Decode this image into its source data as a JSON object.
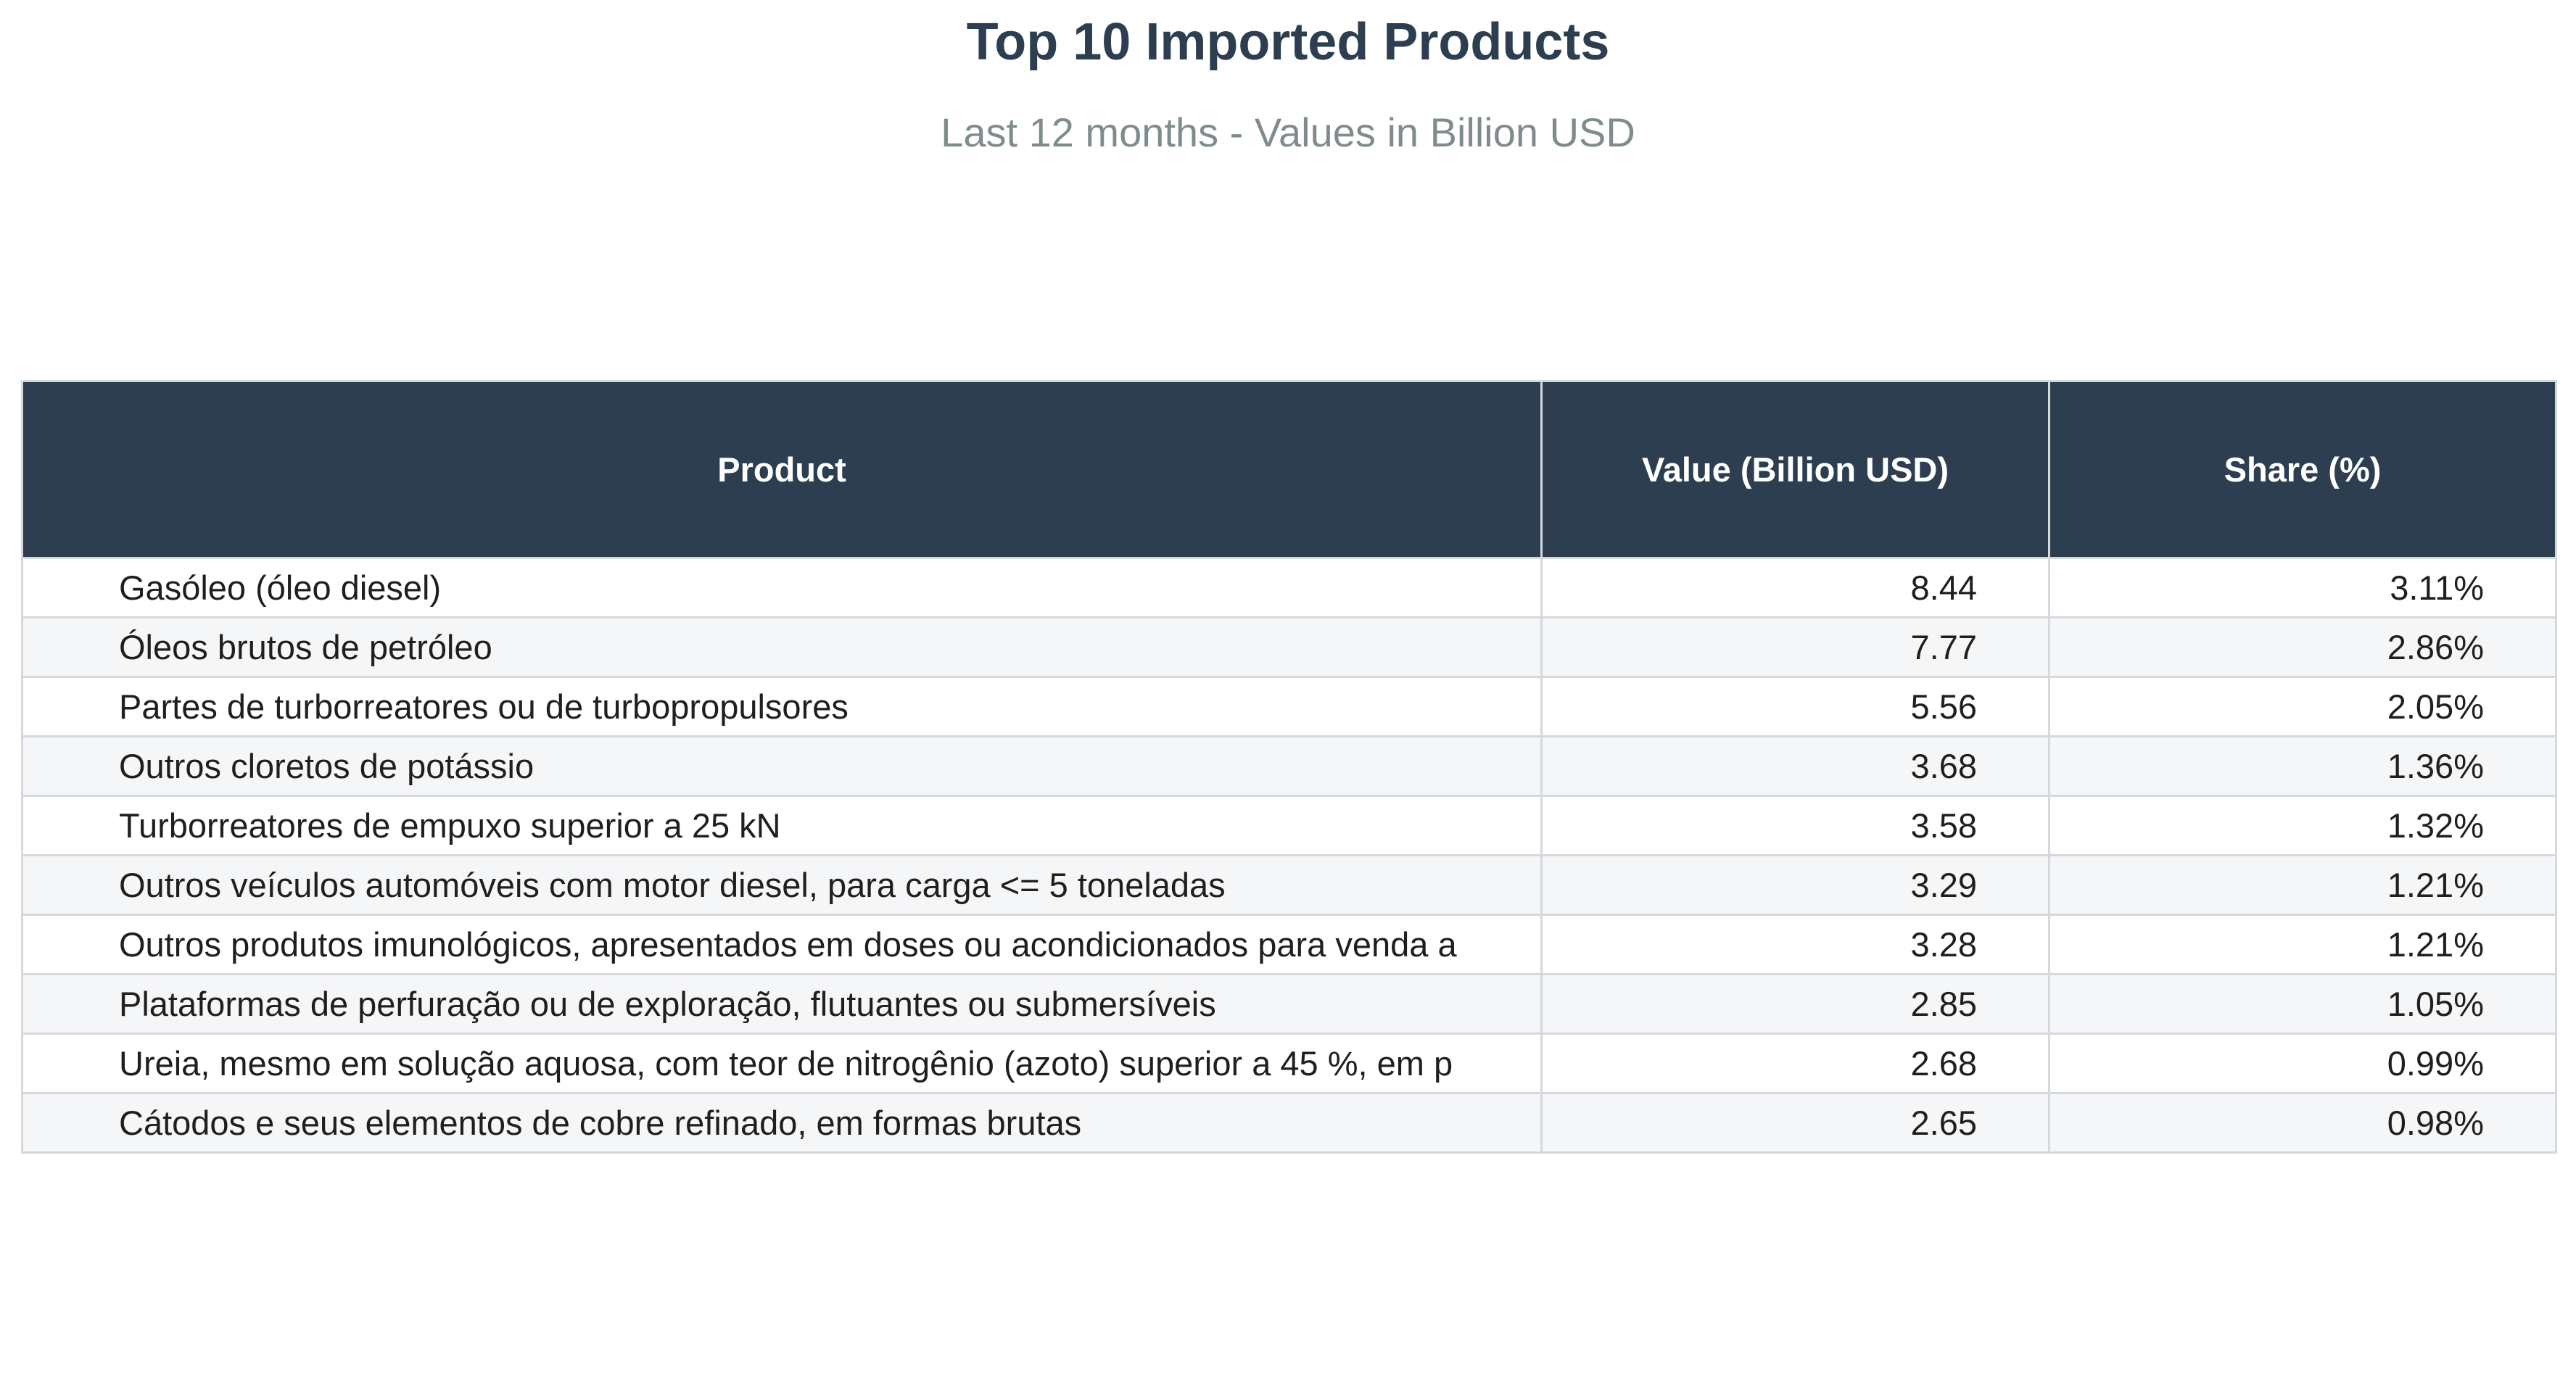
{
  "title": "Top 10 Imported Products",
  "subtitle": "Last 12 months - Values in Billion USD",
  "colors": {
    "header_bg": "#2c3e50",
    "header_text": "#ffffff",
    "title": "#2c3e50",
    "subtitle": "#7f8c8d",
    "row_alt": "#f5f6f8",
    "grid": "#d5d8dc"
  },
  "chart_data": {
    "type": "table",
    "title": "Top 10 Imported Products",
    "subtitle": "Last 12 months - Values in Billion USD",
    "columns": [
      "Product",
      "Value (Billion USD)",
      "Share (%)"
    ],
    "rows": [
      {
        "product": "Gasóleo (óleo diesel)",
        "value": "8.44",
        "share": "3.11%"
      },
      {
        "product": "Óleos brutos de petróleo",
        "value": "7.77",
        "share": "2.86%"
      },
      {
        "product": "Partes de turborreatores ou de turbopropulsores",
        "value": "5.56",
        "share": "2.05%"
      },
      {
        "product": "Outros cloretos de potássio",
        "value": "3.68",
        "share": "1.36%"
      },
      {
        "product": "Turborreatores de empuxo superior a 25 kN",
        "value": "3.58",
        "share": "1.32%"
      },
      {
        "product": "Outros veículos automóveis com motor diesel, para carga <= 5 toneladas",
        "value": "3.29",
        "share": "1.21%"
      },
      {
        "product": "Outros produtos imunológicos, apresentados em doses ou acondicionados para venda a",
        "value": "3.28",
        "share": "1.21%"
      },
      {
        "product": "Plataformas de perfuração ou de exploração, flutuantes ou submersíveis",
        "value": "2.85",
        "share": "1.05%"
      },
      {
        "product": "Ureia, mesmo em solução aquosa, com teor de nitrogênio (azoto) superior a 45 %, em p",
        "value": "2.68",
        "share": "0.99%"
      },
      {
        "product": "Cátodos e seus elementos de cobre refinado, em formas brutas",
        "value": "2.65",
        "share": "0.98%"
      }
    ]
  }
}
